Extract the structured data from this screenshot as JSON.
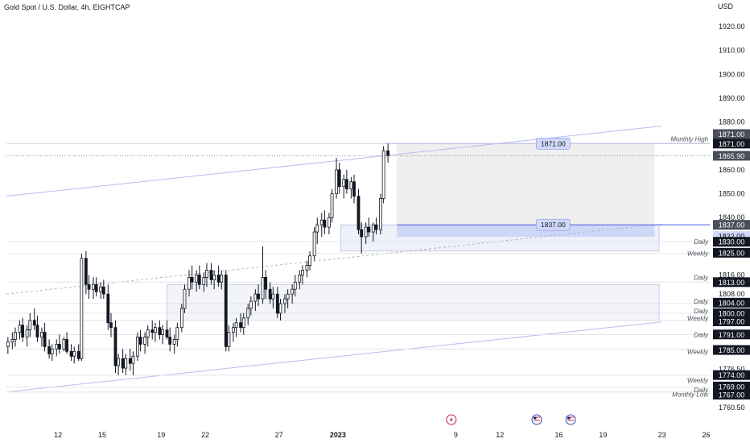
{
  "header": {
    "title": "Gold Spot / U.S. Dollar, 4h, EIGHTCAP",
    "currency": "USD"
  },
  "chart_data": {
    "type": "candlestick",
    "symbol": "Gold Spot / U.S. Dollar",
    "interval": "4h",
    "source": "EIGHTCAP",
    "currency": "USD",
    "y_range": [
      1754,
      1932
    ],
    "y_ticks": [
      1920,
      1910,
      1900,
      1890,
      1880,
      1860,
      1850,
      1840,
      1816,
      1808,
      1776.5,
      1760.5
    ],
    "y_tick_labels": [
      "1920.00",
      "1910.00",
      "1900.00",
      "1890.00",
      "1880.00",
      "1860.00",
      "1850.00",
      "1840.00",
      "1816.00",
      "1808.00",
      "1776.50",
      "1760.50"
    ],
    "x_ticks": [
      {
        "label": "12",
        "x": 12,
        "bold": false
      },
      {
        "label": "15",
        "x": 15,
        "bold": false
      },
      {
        "label": "19",
        "x": 19,
        "bold": false
      },
      {
        "label": "22",
        "x": 22,
        "bold": false
      },
      {
        "label": "27",
        "x": 27,
        "bold": false
      },
      {
        "label": "2023",
        "x": 31,
        "bold": true
      },
      {
        "label": "9",
        "x": 39,
        "bold": false
      },
      {
        "label": "12",
        "x": 42,
        "bold": false
      },
      {
        "label": "16",
        "x": 46,
        "bold": false
      },
      {
        "label": "19",
        "x": 49,
        "bold": false
      },
      {
        "label": "23",
        "x": 53,
        "bold": false
      },
      {
        "label": "26",
        "x": 56,
        "bold": false
      }
    ],
    "x_range": [
      8.5,
      57.5
    ],
    "candles": [
      {
        "x": 8.6,
        "o": 1786,
        "h": 1790,
        "l": 1783,
        "c": 1788
      },
      {
        "x": 8.9,
        "o": 1788,
        "h": 1792,
        "l": 1785,
        "c": 1789
      },
      {
        "x": 9.1,
        "o": 1789,
        "h": 1794,
        "l": 1786,
        "c": 1792
      },
      {
        "x": 9.4,
        "o": 1792,
        "h": 1797,
        "l": 1789,
        "c": 1795
      },
      {
        "x": 9.6,
        "o": 1795,
        "h": 1798,
        "l": 1788,
        "c": 1790
      },
      {
        "x": 9.9,
        "o": 1790,
        "h": 1795,
        "l": 1786,
        "c": 1793
      },
      {
        "x": 10.1,
        "o": 1793,
        "h": 1800,
        "l": 1790,
        "c": 1797
      },
      {
        "x": 10.4,
        "o": 1797,
        "h": 1802,
        "l": 1793,
        "c": 1795
      },
      {
        "x": 10.6,
        "o": 1795,
        "h": 1799,
        "l": 1788,
        "c": 1790
      },
      {
        "x": 10.9,
        "o": 1790,
        "h": 1794,
        "l": 1786,
        "c": 1792
      },
      {
        "x": 11.1,
        "o": 1792,
        "h": 1796,
        "l": 1784,
        "c": 1786
      },
      {
        "x": 11.4,
        "o": 1786,
        "h": 1789,
        "l": 1781,
        "c": 1783
      },
      {
        "x": 11.6,
        "o": 1783,
        "h": 1787,
        "l": 1780,
        "c": 1785
      },
      {
        "x": 11.9,
        "o": 1785,
        "h": 1789,
        "l": 1782,
        "c": 1787
      },
      {
        "x": 12.1,
        "o": 1787,
        "h": 1791,
        "l": 1783,
        "c": 1785
      },
      {
        "x": 12.4,
        "o": 1785,
        "h": 1790,
        "l": 1784,
        "c": 1789
      },
      {
        "x": 12.6,
        "o": 1789,
        "h": 1792,
        "l": 1783,
        "c": 1784
      },
      {
        "x": 12.9,
        "o": 1784,
        "h": 1787,
        "l": 1780,
        "c": 1782
      },
      {
        "x": 13.1,
        "o": 1782,
        "h": 1786,
        "l": 1779,
        "c": 1784
      },
      {
        "x": 13.4,
        "o": 1784,
        "h": 1787,
        "l": 1780,
        "c": 1781
      },
      {
        "x": 13.6,
        "o": 1781,
        "h": 1825,
        "l": 1780,
        "c": 1823
      },
      {
        "x": 13.9,
        "o": 1823,
        "h": 1826,
        "l": 1808,
        "c": 1812
      },
      {
        "x": 14.1,
        "o": 1812,
        "h": 1816,
        "l": 1806,
        "c": 1810
      },
      {
        "x": 14.4,
        "o": 1810,
        "h": 1815,
        "l": 1806,
        "c": 1812
      },
      {
        "x": 14.6,
        "o": 1812,
        "h": 1815,
        "l": 1807,
        "c": 1809
      },
      {
        "x": 14.9,
        "o": 1809,
        "h": 1813,
        "l": 1806,
        "c": 1811
      },
      {
        "x": 15.1,
        "o": 1811,
        "h": 1814,
        "l": 1806,
        "c": 1808
      },
      {
        "x": 15.4,
        "o": 1808,
        "h": 1812,
        "l": 1793,
        "c": 1796
      },
      {
        "x": 15.6,
        "o": 1796,
        "h": 1800,
        "l": 1790,
        "c": 1794
      },
      {
        "x": 15.9,
        "o": 1794,
        "h": 1797,
        "l": 1775,
        "c": 1778
      },
      {
        "x": 16.1,
        "o": 1778,
        "h": 1783,
        "l": 1774,
        "c": 1781
      },
      {
        "x": 16.4,
        "o": 1781,
        "h": 1785,
        "l": 1775,
        "c": 1777
      },
      {
        "x": 16.6,
        "o": 1777,
        "h": 1783,
        "l": 1774,
        "c": 1781
      },
      {
        "x": 16.9,
        "o": 1781,
        "h": 1785,
        "l": 1776,
        "c": 1779
      },
      {
        "x": 17.1,
        "o": 1779,
        "h": 1784,
        "l": 1774,
        "c": 1782
      },
      {
        "x": 17.4,
        "o": 1782,
        "h": 1792,
        "l": 1780,
        "c": 1790
      },
      {
        "x": 17.6,
        "o": 1790,
        "h": 1793,
        "l": 1784,
        "c": 1787
      },
      {
        "x": 17.9,
        "o": 1787,
        "h": 1792,
        "l": 1783,
        "c": 1790
      },
      {
        "x": 18.1,
        "o": 1790,
        "h": 1795,
        "l": 1786,
        "c": 1793
      },
      {
        "x": 18.4,
        "o": 1793,
        "h": 1797,
        "l": 1789,
        "c": 1792
      },
      {
        "x": 18.6,
        "o": 1792,
        "h": 1796,
        "l": 1788,
        "c": 1794
      },
      {
        "x": 18.9,
        "o": 1794,
        "h": 1797,
        "l": 1789,
        "c": 1791
      },
      {
        "x": 19.1,
        "o": 1791,
        "h": 1795,
        "l": 1787,
        "c": 1793
      },
      {
        "x": 19.4,
        "o": 1793,
        "h": 1797,
        "l": 1789,
        "c": 1790
      },
      {
        "x": 19.6,
        "o": 1790,
        "h": 1794,
        "l": 1784,
        "c": 1787
      },
      {
        "x": 19.9,
        "o": 1787,
        "h": 1791,
        "l": 1783,
        "c": 1789
      },
      {
        "x": 20.1,
        "o": 1789,
        "h": 1796,
        "l": 1786,
        "c": 1794
      },
      {
        "x": 20.4,
        "o": 1794,
        "h": 1804,
        "l": 1792,
        "c": 1802
      },
      {
        "x": 20.6,
        "o": 1802,
        "h": 1812,
        "l": 1800,
        "c": 1810
      },
      {
        "x": 20.9,
        "o": 1810,
        "h": 1818,
        "l": 1807,
        "c": 1815
      },
      {
        "x": 21.1,
        "o": 1815,
        "h": 1820,
        "l": 1810,
        "c": 1813
      },
      {
        "x": 21.4,
        "o": 1813,
        "h": 1818,
        "l": 1809,
        "c": 1816
      },
      {
        "x": 21.6,
        "o": 1816,
        "h": 1820,
        "l": 1810,
        "c": 1812
      },
      {
        "x": 21.9,
        "o": 1812,
        "h": 1817,
        "l": 1809,
        "c": 1815
      },
      {
        "x": 22.1,
        "o": 1815,
        "h": 1821,
        "l": 1811,
        "c": 1818
      },
      {
        "x": 22.4,
        "o": 1818,
        "h": 1821,
        "l": 1812,
        "c": 1814
      },
      {
        "x": 22.6,
        "o": 1814,
        "h": 1818,
        "l": 1810,
        "c": 1816
      },
      {
        "x": 22.9,
        "o": 1816,
        "h": 1820,
        "l": 1811,
        "c": 1813
      },
      {
        "x": 23.1,
        "o": 1813,
        "h": 1818,
        "l": 1810,
        "c": 1816
      },
      {
        "x": 23.4,
        "o": 1816,
        "h": 1818,
        "l": 1784,
        "c": 1786
      },
      {
        "x": 23.6,
        "o": 1786,
        "h": 1795,
        "l": 1784,
        "c": 1792
      },
      {
        "x": 23.9,
        "o": 1792,
        "h": 1796,
        "l": 1788,
        "c": 1794
      },
      {
        "x": 24.1,
        "o": 1794,
        "h": 1798,
        "l": 1790,
        "c": 1796
      },
      {
        "x": 24.4,
        "o": 1796,
        "h": 1800,
        "l": 1792,
        "c": 1794
      },
      {
        "x": 24.6,
        "o": 1794,
        "h": 1800,
        "l": 1791,
        "c": 1798
      },
      {
        "x": 24.9,
        "o": 1798,
        "h": 1804,
        "l": 1795,
        "c": 1802
      },
      {
        "x": 25.1,
        "o": 1802,
        "h": 1807,
        "l": 1799,
        "c": 1805
      },
      {
        "x": 25.4,
        "o": 1805,
        "h": 1810,
        "l": 1801,
        "c": 1808
      },
      {
        "x": 25.6,
        "o": 1808,
        "h": 1812,
        "l": 1803,
        "c": 1806
      },
      {
        "x": 25.9,
        "o": 1806,
        "h": 1828,
        "l": 1804,
        "c": 1815
      },
      {
        "x": 26.1,
        "o": 1815,
        "h": 1818,
        "l": 1806,
        "c": 1810
      },
      {
        "x": 26.4,
        "o": 1810,
        "h": 1813,
        "l": 1804,
        "c": 1806
      },
      {
        "x": 26.6,
        "o": 1806,
        "h": 1811,
        "l": 1802,
        "c": 1808
      },
      {
        "x": 26.9,
        "o": 1808,
        "h": 1811,
        "l": 1798,
        "c": 1800
      },
      {
        "x": 27.1,
        "o": 1800,
        "h": 1806,
        "l": 1797,
        "c": 1804
      },
      {
        "x": 27.4,
        "o": 1804,
        "h": 1808,
        "l": 1800,
        "c": 1806
      },
      {
        "x": 27.6,
        "o": 1806,
        "h": 1810,
        "l": 1802,
        "c": 1808
      },
      {
        "x": 27.9,
        "o": 1808,
        "h": 1812,
        "l": 1804,
        "c": 1810
      },
      {
        "x": 28.1,
        "o": 1810,
        "h": 1816,
        "l": 1807,
        "c": 1813
      },
      {
        "x": 28.4,
        "o": 1813,
        "h": 1818,
        "l": 1810,
        "c": 1816
      },
      {
        "x": 28.6,
        "o": 1816,
        "h": 1820,
        "l": 1812,
        "c": 1818
      },
      {
        "x": 28.9,
        "o": 1818,
        "h": 1822,
        "l": 1815,
        "c": 1820
      },
      {
        "x": 29.1,
        "o": 1820,
        "h": 1826,
        "l": 1818,
        "c": 1824
      },
      {
        "x": 29.4,
        "o": 1824,
        "h": 1836,
        "l": 1822,
        "c": 1834
      },
      {
        "x": 29.6,
        "o": 1834,
        "h": 1840,
        "l": 1829,
        "c": 1837
      },
      {
        "x": 29.9,
        "o": 1837,
        "h": 1842,
        "l": 1832,
        "c": 1839
      },
      {
        "x": 30.1,
        "o": 1839,
        "h": 1843,
        "l": 1833,
        "c": 1836
      },
      {
        "x": 30.4,
        "o": 1836,
        "h": 1842,
        "l": 1833,
        "c": 1840
      },
      {
        "x": 30.6,
        "o": 1840,
        "h": 1852,
        "l": 1838,
        "c": 1850
      },
      {
        "x": 30.9,
        "o": 1850,
        "h": 1865,
        "l": 1848,
        "c": 1860
      },
      {
        "x": 31.1,
        "o": 1860,
        "h": 1863,
        "l": 1850,
        "c": 1853
      },
      {
        "x": 31.4,
        "o": 1853,
        "h": 1858,
        "l": 1848,
        "c": 1856
      },
      {
        "x": 31.6,
        "o": 1856,
        "h": 1860,
        "l": 1850,
        "c": 1852
      },
      {
        "x": 31.9,
        "o": 1852,
        "h": 1857,
        "l": 1848,
        "c": 1855
      },
      {
        "x": 32.1,
        "o": 1855,
        "h": 1858,
        "l": 1846,
        "c": 1849
      },
      {
        "x": 32.4,
        "o": 1849,
        "h": 1852,
        "l": 1833,
        "c": 1835
      },
      {
        "x": 32.6,
        "o": 1835,
        "h": 1838,
        "l": 1825,
        "c": 1832
      },
      {
        "x": 32.9,
        "o": 1832,
        "h": 1838,
        "l": 1829,
        "c": 1836
      },
      {
        "x": 33.1,
        "o": 1836,
        "h": 1840,
        "l": 1832,
        "c": 1834
      },
      {
        "x": 33.4,
        "o": 1834,
        "h": 1838,
        "l": 1830,
        "c": 1837
      },
      {
        "x": 33.6,
        "o": 1837,
        "h": 1840,
        "l": 1833,
        "c": 1835
      },
      {
        "x": 33.9,
        "o": 1835,
        "h": 1850,
        "l": 1833,
        "c": 1848
      },
      {
        "x": 34.1,
        "o": 1848,
        "h": 1870,
        "l": 1846,
        "c": 1868
      },
      {
        "x": 34.4,
        "o": 1868,
        "h": 1871,
        "l": 1863,
        "c": 1866
      }
    ],
    "zones": [
      {
        "x0": 31.2,
        "x1": 52.8,
        "y0": 1826,
        "y1": 1837,
        "fill": "#eef0fa",
        "stroke": "#b8bede"
      },
      {
        "x0": 35.0,
        "x1": 52.5,
        "y0": 1837,
        "y1": 1871,
        "fill": "#efefef",
        "stroke": "none"
      },
      {
        "x0": 35.0,
        "x1": 52.5,
        "y0": 1832,
        "y1": 1837,
        "fill": "#cfd6f6",
        "stroke": "none"
      },
      {
        "x0": 19.4,
        "x1": 52.8,
        "y0": 1797,
        "y1": 1812,
        "fill": "#f3f4fa",
        "stroke": "#b8bede"
      }
    ],
    "trendlines": [
      {
        "x0": 8.5,
        "y0": 1849,
        "x1": 58.5,
        "y1": 1882,
        "color": "#b7bdf0",
        "dash": ""
      },
      {
        "x0": 8.5,
        "y0": 1767,
        "x1": 58.5,
        "y1": 1800,
        "color": "#b7bdf0",
        "dash": ""
      },
      {
        "x0": 8.5,
        "y0": 1808,
        "x1": 58.5,
        "y1": 1841,
        "color": "#b0b6c8",
        "dash": "3,3"
      }
    ],
    "hlines": [
      {
        "y": 1871,
        "x0": 34.2,
        "x1": 57.5,
        "color": "#4f62e0",
        "width": 1,
        "dash": ""
      },
      {
        "y": 1837,
        "x0": 35.0,
        "x1": 57.5,
        "color": "#4f62e0",
        "width": 1,
        "dash": ""
      },
      {
        "y": 1865.9,
        "x0": 8.5,
        "x1": 57.5,
        "color": "#868993",
        "width": 1,
        "dash": "1,2"
      },
      {
        "y": 1871,
        "x0": 8.5,
        "x1": 57.5,
        "color": "#d4d6dd",
        "width": 1,
        "dash": ""
      },
      {
        "y": 1830,
        "x0": 8.5,
        "x1": 57.5,
        "color": "#e3e5ea",
        "width": 1,
        "dash": ""
      },
      {
        "y": 1825,
        "x0": 8.5,
        "x1": 57.5,
        "color": "#e3e5ea",
        "width": 1,
        "dash": ""
      },
      {
        "y": 1813,
        "x0": 8.5,
        "x1": 57.5,
        "color": "#e3e5ea",
        "width": 1,
        "dash": ""
      },
      {
        "y": 1804,
        "x0": 8.5,
        "x1": 57.5,
        "color": "#e3e5ea",
        "width": 1,
        "dash": ""
      },
      {
        "y": 1800,
        "x0": 8.5,
        "x1": 57.5,
        "color": "#e3e5ea",
        "width": 1,
        "dash": ""
      },
      {
        "y": 1797,
        "x0": 8.5,
        "x1": 57.5,
        "color": "#e3e5ea",
        "width": 1,
        "dash": ""
      },
      {
        "y": 1791,
        "x0": 8.5,
        "x1": 57.5,
        "color": "#e3e5ea",
        "width": 1,
        "dash": ""
      },
      {
        "y": 1785,
        "x0": 8.5,
        "x1": 57.5,
        "color": "#e3e5ea",
        "width": 1,
        "dash": ""
      },
      {
        "y": 1774,
        "x0": 8.5,
        "x1": 57.5,
        "color": "#e3e5ea",
        "width": 1,
        "dash": ""
      },
      {
        "y": 1769,
        "x0": 8.5,
        "x1": 57.5,
        "color": "#e3e5ea",
        "width": 1,
        "dash": ""
      },
      {
        "y": 1767,
        "x0": 8.5,
        "x1": 57.5,
        "color": "#e3e5ea",
        "width": 1,
        "dash": ""
      }
    ],
    "level_labels": [
      {
        "text": "Monthly High",
        "y": 1873
      },
      {
        "text": "Daily",
        "y": 1830
      },
      {
        "text": "Weekly",
        "y": 1825
      },
      {
        "text": "Daily",
        "y": 1815
      },
      {
        "text": "Daily",
        "y": 1805
      },
      {
        "text": "Daily",
        "y": 1801
      },
      {
        "text": "Weekly",
        "y": 1798
      },
      {
        "text": "Daily",
        "y": 1791
      },
      {
        "text": "Weekly",
        "y": 1784
      },
      {
        "text": "Weekly",
        "y": 1772
      },
      {
        "text": "Daily",
        "y": 1768
      },
      {
        "text": "Monthly Low",
        "y": 1766
      }
    ],
    "price_tags": [
      {
        "text": "1871.00",
        "y": 1875,
        "bg": "#4a4e5a",
        "fg": "#ffffff"
      },
      {
        "text": "1871.00",
        "y": 1871,
        "bg": "#131722",
        "fg": "#ffffff"
      },
      {
        "text": "1865.90",
        "y": 1865.9,
        "bg": "#4a4e5a",
        "fg": "#ffffff"
      },
      {
        "text": "1837.00",
        "y": 1837,
        "bg": "#4a4e5a",
        "fg": "#ffffff"
      },
      {
        "text": "1832.00",
        "y": 1832.3,
        "bg": "#d1d8f8",
        "fg": "#131722"
      },
      {
        "text": "1830.00",
        "y": 1829.9,
        "bg": "#131722",
        "fg": "#ffffff"
      },
      {
        "text": "1825.00",
        "y": 1825.3,
        "bg": "#131722",
        "fg": "#ffffff"
      },
      {
        "text": "1813.00",
        "y": 1813,
        "bg": "#131722",
        "fg": "#ffffff"
      },
      {
        "text": "1804.00",
        "y": 1804.4,
        "bg": "#131722",
        "fg": "#ffffff"
      },
      {
        "text": "1800.00",
        "y": 1800,
        "bg": "#131722",
        "fg": "#ffffff"
      },
      {
        "text": "1797.00",
        "y": 1796.6,
        "bg": "#131722",
        "fg": "#ffffff"
      },
      {
        "text": "1791.00",
        "y": 1791.1,
        "bg": "#131722",
        "fg": "#ffffff"
      },
      {
        "text": "1785.00",
        "y": 1784.6,
        "bg": "#131722",
        "fg": "#ffffff"
      },
      {
        "text": "1774.00",
        "y": 1774.1,
        "bg": "#131722",
        "fg": "#ffffff"
      },
      {
        "text": "1769.00",
        "y": 1769.3,
        "bg": "#131722",
        "fg": "#ffffff"
      },
      {
        "text": "1767.00",
        "y": 1765.9,
        "bg": "#131722",
        "fg": "#ffffff"
      }
    ],
    "callouts": [
      {
        "text": "1871.00",
        "x": 44.3,
        "y": 1871
      },
      {
        "text": "1837.00",
        "x": 44.3,
        "y": 1837
      }
    ],
    "events": [
      {
        "x": 38.7,
        "kind": "earnings",
        "icon": "lightning-icon"
      },
      {
        "x": 44.5,
        "kind": "flag-us",
        "icon": "us-flag-icon"
      },
      {
        "x": 46.8,
        "kind": "flag-us",
        "icon": "us-flag-icon"
      }
    ],
    "colors": {
      "up_body": "#ffffff",
      "up_wick": "#131722",
      "down_body": "#131722",
      "axis_text": "#131722",
      "label_text": "#50535e"
    }
  }
}
